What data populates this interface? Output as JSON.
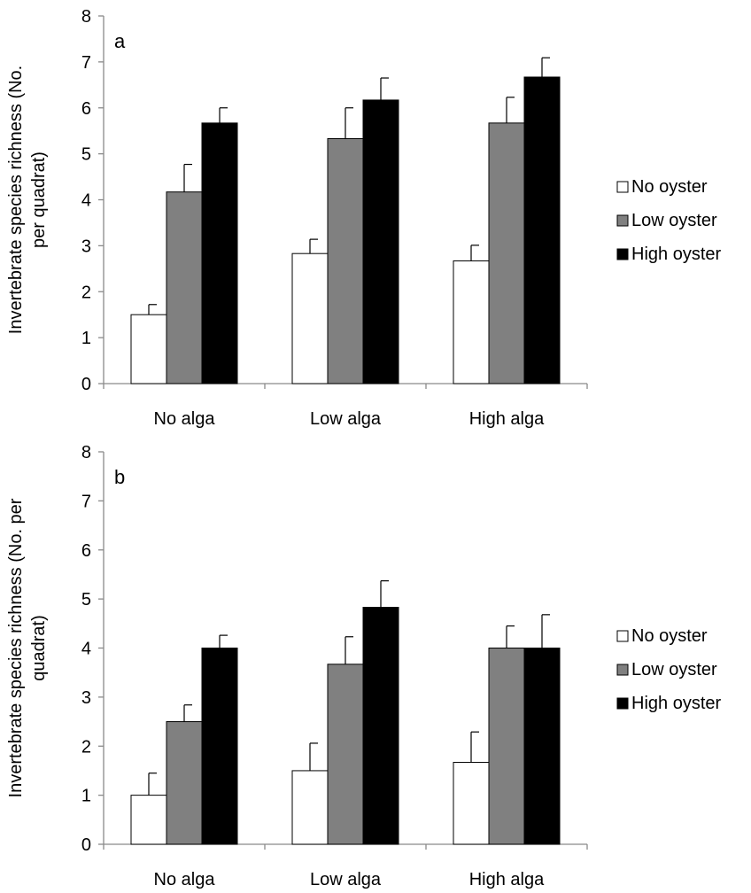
{
  "chart_data": [
    {
      "type": "bar",
      "panel_label": "a",
      "ylabel": "Invertebrate species richness (No. per quadrat)",
      "ylabel_lines": [
        "Invertebrate species richness (No.",
        "per quadrat)"
      ],
      "xlabel": "",
      "ylim": [
        0,
        8
      ],
      "yticks": [
        "0",
        "1",
        "2",
        "3",
        "4",
        "5",
        "6",
        "7",
        "8"
      ],
      "categories": [
        "No alga",
        "Low alga",
        "High alga"
      ],
      "grid": false,
      "legend_position": "right",
      "series": [
        {
          "name": "No oyster",
          "color": "#ffffff",
          "values": [
            1.5,
            2.83,
            2.67
          ],
          "errors": [
            0.22,
            0.31,
            0.34
          ]
        },
        {
          "name": "Low oyster",
          "color": "#808080",
          "values": [
            4.17,
            5.33,
            5.67
          ],
          "errors": [
            0.6,
            0.67,
            0.56
          ]
        },
        {
          "name": "High oyster",
          "color": "#000000",
          "values": [
            5.67,
            6.17,
            6.67
          ],
          "errors": [
            0.33,
            0.48,
            0.42
          ]
        }
      ]
    },
    {
      "type": "bar",
      "panel_label": "b",
      "ylabel": "Invertebrate species richness (No. per quadrat)",
      "ylabel_lines": [
        "Invertebrate species richness (No. per",
        "quadrat)"
      ],
      "xlabel": "",
      "ylim": [
        0,
        8
      ],
      "yticks": [
        "0",
        "1",
        "2",
        "3",
        "4",
        "5",
        "6",
        "7",
        "8"
      ],
      "categories": [
        "No alga",
        "Low alga",
        "High alga"
      ],
      "grid": false,
      "legend_position": "right",
      "series": [
        {
          "name": "No oyster",
          "color": "#ffffff",
          "values": [
            1.0,
            1.5,
            1.67
          ],
          "errors": [
            0.45,
            0.56,
            0.62
          ]
        },
        {
          "name": "Low oyster",
          "color": "#808080",
          "values": [
            2.5,
            3.67,
            4.0
          ],
          "errors": [
            0.34,
            0.56,
            0.45
          ]
        },
        {
          "name": "High oyster",
          "color": "#000000",
          "values": [
            4.0,
            4.83,
            4.0
          ],
          "errors": [
            0.26,
            0.54,
            0.68
          ]
        }
      ]
    }
  ]
}
